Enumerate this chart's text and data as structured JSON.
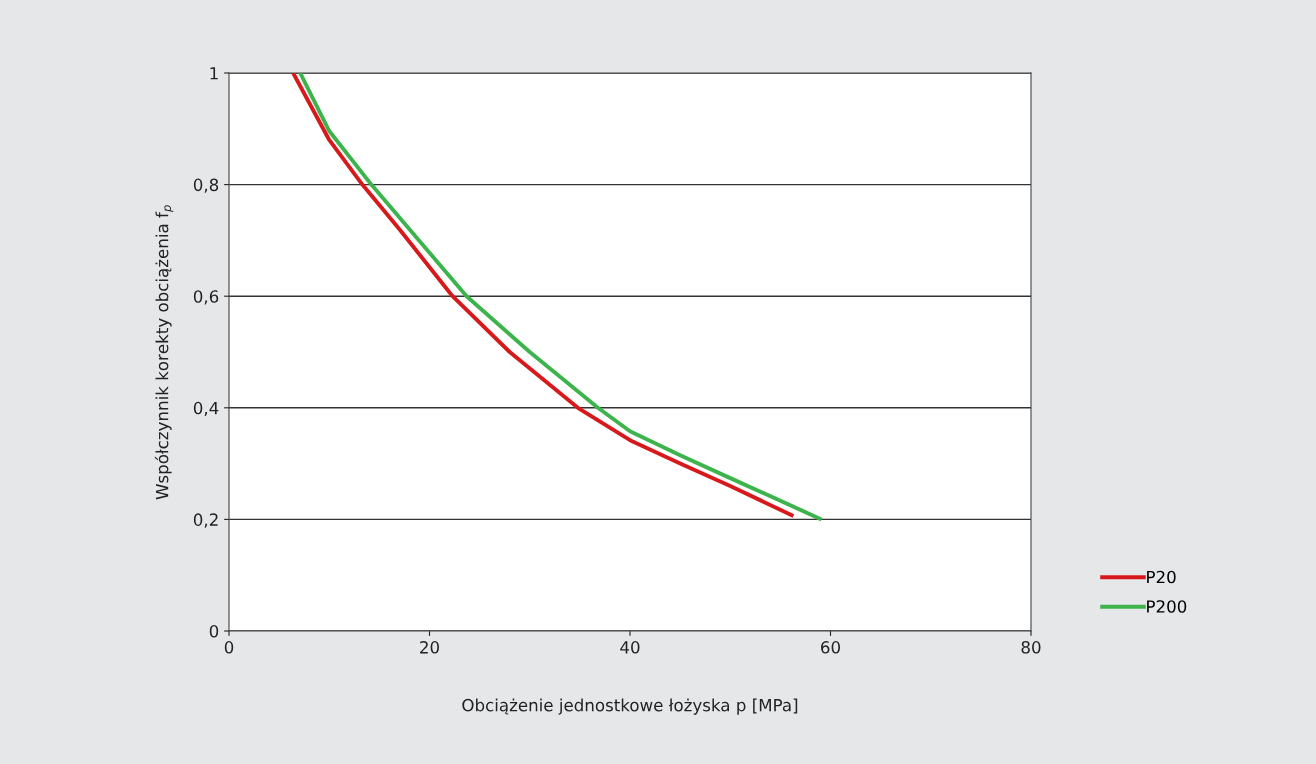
{
  "chart_data": {
    "type": "line",
    "xlabel": "Obciążenie jednostkowe łożyska p [MPa]",
    "ylabel": "Współczynnik korekty obciążenia f$_{p}$",
    "xlim": [
      0,
      80
    ],
    "xticks": [
      0,
      20,
      40,
      60,
      80
    ],
    "ylim": [
      0,
      1
    ],
    "yticks": [
      0,
      {
        "value": 0.2,
        "label": "0,2"
      },
      {
        "value": 0.4,
        "label": "0,4"
      },
      {
        "value": 0.6,
        "label": "0,6"
      },
      {
        "value": 0.8,
        "label": "0,8"
      },
      1
    ],
    "grid": "y",
    "legend": "bottom right",
    "marker": "none",
    "line_style": "solid",
    "series": [
      {
        "name": "P20",
        "color": "#d7191c",
        "x": [
          6.4,
          10,
          13.3,
          17,
          22.3,
          28,
          34.8,
          40,
          45,
          50,
          56.3
        ],
        "values": [
          1,
          0.88,
          0.8,
          0.72,
          0.6,
          0.5,
          0.4,
          0.342,
          0.3,
          0.26,
          0.206
        ]
      },
      {
        "name": "P200",
        "color": "#3cb44b",
        "x": [
          7.1,
          10,
          14.2,
          18,
          23.7,
          30,
          36.8,
          40,
          45,
          50,
          59.1
        ],
        "values": [
          1,
          0.896,
          0.8,
          0.72,
          0.6,
          0.5,
          0.4,
          0.358,
          0.315,
          0.274,
          0.2
        ]
      }
    ]
  }
}
